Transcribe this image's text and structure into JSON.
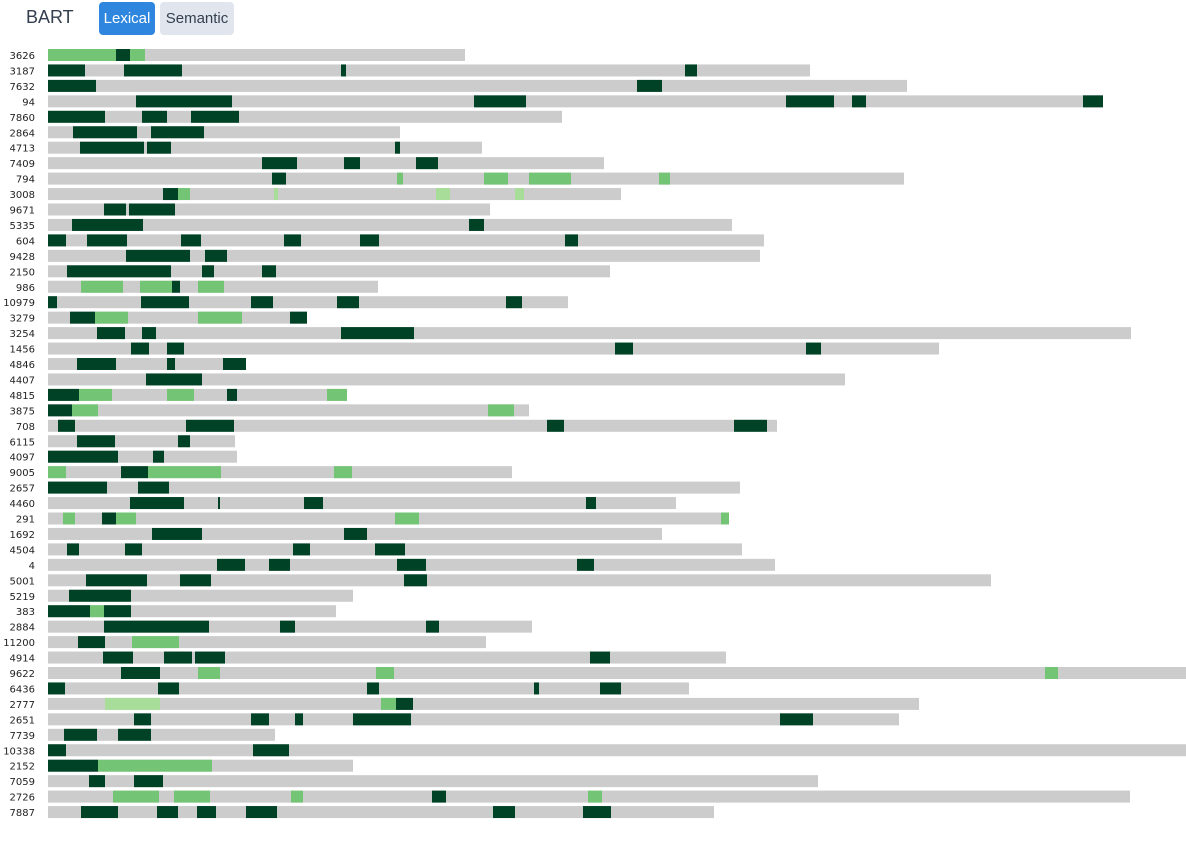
{
  "header": {
    "title": "BART",
    "tabs": [
      {
        "label": "Lexical",
        "active": true
      },
      {
        "label": "Semantic",
        "active": false
      }
    ]
  },
  "colors": {
    "background_bar": "#cccccc",
    "exact_match": "#004225",
    "partial_match": "#74c476",
    "weak_match": "#a8dd99",
    "active_tab": "#2e86de",
    "inactive_tab": "#e1e6ee"
  },
  "chart_data": {
    "type": "bar",
    "orientation": "horizontal",
    "x_axis_visible": false,
    "grid": false,
    "rows": [
      {
        "id": "3626",
        "length": 417,
        "segments": [
          [
            0,
            68,
            "partial"
          ],
          [
            68,
            82,
            "exact"
          ],
          [
            82,
            97,
            "partial"
          ]
        ]
      },
      {
        "id": "3187",
        "length": 762,
        "segments": [
          [
            0,
            37,
            "exact"
          ],
          [
            76,
            134,
            "exact"
          ],
          [
            293,
            298,
            "exact"
          ],
          [
            637,
            649,
            "exact"
          ]
        ]
      },
      {
        "id": "7632",
        "length": 859,
        "segments": [
          [
            0,
            48,
            "exact"
          ],
          [
            589,
            614,
            "exact"
          ]
        ]
      },
      {
        "id": "94",
        "length": 1055,
        "segments": [
          [
            88,
            184,
            "exact"
          ],
          [
            426,
            478,
            "exact"
          ],
          [
            738,
            786,
            "exact"
          ],
          [
            804,
            818,
            "exact"
          ],
          [
            1035,
            1055,
            "exact"
          ]
        ]
      },
      {
        "id": "7860",
        "length": 514,
        "segments": [
          [
            0,
            57,
            "exact"
          ],
          [
            94,
            119,
            "exact"
          ],
          [
            143,
            191,
            "exact"
          ]
        ]
      },
      {
        "id": "2864",
        "length": 352,
        "segments": [
          [
            25,
            89,
            "exact"
          ],
          [
            103,
            156,
            "exact"
          ]
        ]
      },
      {
        "id": "4713",
        "length": 434,
        "segments": [
          [
            32,
            96,
            "exact"
          ],
          [
            99,
            123,
            "exact"
          ],
          [
            347,
            352,
            "exact"
          ]
        ]
      },
      {
        "id": "7409",
        "length": 556,
        "segments": [
          [
            214,
            249,
            "exact"
          ],
          [
            296,
            312,
            "exact"
          ],
          [
            368,
            390,
            "exact"
          ]
        ]
      },
      {
        "id": "794",
        "length": 856,
        "segments": [
          [
            224,
            238,
            "exact"
          ],
          [
            349,
            355,
            "partial"
          ],
          [
            436,
            460,
            "partial"
          ],
          [
            481,
            523,
            "partial"
          ],
          [
            611,
            622,
            "partial"
          ]
        ]
      },
      {
        "id": "3008",
        "length": 573,
        "segments": [
          [
            115,
            130,
            "exact"
          ],
          [
            130,
            142,
            "partial"
          ],
          [
            226,
            230,
            "weak"
          ],
          [
            388,
            402,
            "weak"
          ],
          [
            467,
            476,
            "weak"
          ]
        ]
      },
      {
        "id": "9671",
        "length": 442,
        "segments": [
          [
            56,
            78,
            "exact"
          ],
          [
            81,
            127,
            "exact"
          ]
        ]
      },
      {
        "id": "5335",
        "length": 684,
        "segments": [
          [
            24,
            95,
            "exact"
          ],
          [
            421,
            436,
            "exact"
          ]
        ]
      },
      {
        "id": "604",
        "length": 716,
        "segments": [
          [
            0,
            18,
            "exact"
          ],
          [
            39,
            79,
            "exact"
          ],
          [
            133,
            153,
            "exact"
          ],
          [
            236,
            253,
            "exact"
          ],
          [
            312,
            331,
            "exact"
          ],
          [
            517,
            530,
            "exact"
          ]
        ]
      },
      {
        "id": "9428",
        "length": 712,
        "segments": [
          [
            78,
            142,
            "exact"
          ],
          [
            157,
            179,
            "exact"
          ]
        ]
      },
      {
        "id": "2150",
        "length": 562,
        "segments": [
          [
            19,
            123,
            "exact"
          ],
          [
            154,
            166,
            "exact"
          ],
          [
            214,
            228,
            "exact"
          ]
        ]
      },
      {
        "id": "986",
        "length": 330,
        "segments": [
          [
            33,
            75,
            "partial"
          ],
          [
            92,
            124,
            "partial"
          ],
          [
            124,
            132,
            "exact"
          ],
          [
            150,
            176,
            "partial"
          ]
        ]
      },
      {
        "id": "10979",
        "length": 520,
        "segments": [
          [
            0,
            9,
            "exact"
          ],
          [
            93,
            141,
            "exact"
          ],
          [
            203,
            225,
            "exact"
          ],
          [
            289,
            311,
            "exact"
          ],
          [
            458,
            474,
            "exact"
          ]
        ]
      },
      {
        "id": "3279",
        "length": 259,
        "segments": [
          [
            22,
            47,
            "exact"
          ],
          [
            47,
            80,
            "partial"
          ],
          [
            150,
            194,
            "partial"
          ],
          [
            242,
            259,
            "exact"
          ]
        ]
      },
      {
        "id": "3254",
        "length": 1083,
        "segments": [
          [
            49,
            77,
            "exact"
          ],
          [
            94,
            108,
            "exact"
          ],
          [
            293,
            366,
            "exact"
          ]
        ]
      },
      {
        "id": "1456",
        "length": 891,
        "segments": [
          [
            83,
            101,
            "exact"
          ],
          [
            119,
            136,
            "exact"
          ],
          [
            567,
            585,
            "exact"
          ],
          [
            758,
            773,
            "exact"
          ]
        ]
      },
      {
        "id": "4846",
        "length": 198,
        "segments": [
          [
            29,
            68,
            "exact"
          ],
          [
            119,
            127,
            "exact"
          ],
          [
            175,
            198,
            "exact"
          ]
        ]
      },
      {
        "id": "4407",
        "length": 797,
        "segments": [
          [
            98,
            154,
            "exact"
          ]
        ]
      },
      {
        "id": "4815",
        "length": 299,
        "segments": [
          [
            0,
            31,
            "exact"
          ],
          [
            31,
            64,
            "partial"
          ],
          [
            119,
            146,
            "partial"
          ],
          [
            179,
            189,
            "exact"
          ],
          [
            279,
            299,
            "partial"
          ]
        ]
      },
      {
        "id": "3875",
        "length": 481,
        "segments": [
          [
            0,
            24,
            "exact"
          ],
          [
            24,
            50,
            "partial"
          ],
          [
            440,
            466,
            "partial"
          ]
        ]
      },
      {
        "id": "708",
        "length": 729,
        "segments": [
          [
            10,
            27,
            "exact"
          ],
          [
            138,
            186,
            "exact"
          ],
          [
            499,
            516,
            "exact"
          ],
          [
            686,
            719,
            "exact"
          ]
        ]
      },
      {
        "id": "6115",
        "length": 187,
        "segments": [
          [
            29,
            67,
            "exact"
          ],
          [
            130,
            142,
            "exact"
          ]
        ]
      },
      {
        "id": "4097",
        "length": 189,
        "segments": [
          [
            0,
            70,
            "exact"
          ],
          [
            105,
            116,
            "exact"
          ]
        ]
      },
      {
        "id": "9005",
        "length": 464,
        "segments": [
          [
            0,
            18,
            "partial"
          ],
          [
            73,
            100,
            "exact"
          ],
          [
            100,
            173,
            "partial"
          ],
          [
            286,
            304,
            "partial"
          ]
        ]
      },
      {
        "id": "2657",
        "length": 692,
        "segments": [
          [
            0,
            59,
            "exact"
          ],
          [
            90,
            121,
            "exact"
          ]
        ]
      },
      {
        "id": "4460",
        "length": 628,
        "segments": [
          [
            82,
            136,
            "exact"
          ],
          [
            170,
            172,
            "exact"
          ],
          [
            256,
            275,
            "exact"
          ],
          [
            538,
            548,
            "exact"
          ]
        ]
      },
      {
        "id": "291",
        "length": 681,
        "segments": [
          [
            15,
            27,
            "partial"
          ],
          [
            54,
            68,
            "exact"
          ],
          [
            68,
            88,
            "partial"
          ],
          [
            347,
            371,
            "partial"
          ],
          [
            673,
            681,
            "partial"
          ]
        ]
      },
      {
        "id": "1692",
        "length": 614,
        "segments": [
          [
            104,
            154,
            "exact"
          ],
          [
            296,
            319,
            "exact"
          ]
        ]
      },
      {
        "id": "4504",
        "length": 694,
        "segments": [
          [
            19,
            31,
            "exact"
          ],
          [
            77,
            94,
            "exact"
          ],
          [
            245,
            262,
            "exact"
          ],
          [
            327,
            357,
            "exact"
          ]
        ]
      },
      {
        "id": "4",
        "length": 727,
        "segments": [
          [
            169,
            197,
            "exact"
          ],
          [
            221,
            242,
            "exact"
          ],
          [
            349,
            378,
            "exact"
          ],
          [
            529,
            546,
            "exact"
          ]
        ]
      },
      {
        "id": "5001",
        "length": 943,
        "segments": [
          [
            38,
            99,
            "exact"
          ],
          [
            132,
            163,
            "exact"
          ],
          [
            356,
            379,
            "exact"
          ]
        ]
      },
      {
        "id": "5219",
        "length": 305,
        "segments": [
          [
            21,
            83,
            "exact"
          ]
        ]
      },
      {
        "id": "383",
        "length": 288,
        "segments": [
          [
            0,
            42,
            "exact"
          ],
          [
            42,
            56,
            "partial"
          ],
          [
            56,
            83,
            "exact"
          ]
        ]
      },
      {
        "id": "2884",
        "length": 484,
        "segments": [
          [
            56,
            161,
            "exact"
          ],
          [
            232,
            247,
            "exact"
          ],
          [
            378,
            391,
            "exact"
          ]
        ]
      },
      {
        "id": "11200",
        "length": 438,
        "segments": [
          [
            30,
            57,
            "exact"
          ],
          [
            84,
            131,
            "partial"
          ]
        ]
      },
      {
        "id": "4914",
        "length": 678,
        "segments": [
          [
            55,
            85,
            "exact"
          ],
          [
            116,
            144,
            "exact"
          ],
          [
            147,
            177,
            "exact"
          ],
          [
            542,
            562,
            "exact"
          ]
        ]
      },
      {
        "id": "9622",
        "length": 1138,
        "segments": [
          [
            73,
            112,
            "exact"
          ],
          [
            150,
            172,
            "partial"
          ],
          [
            328,
            346,
            "partial"
          ],
          [
            997,
            1010,
            "partial"
          ]
        ]
      },
      {
        "id": "6436",
        "length": 641,
        "segments": [
          [
            0,
            17,
            "exact"
          ],
          [
            110,
            131,
            "exact"
          ],
          [
            319,
            331,
            "exact"
          ],
          [
            486,
            491,
            "exact"
          ],
          [
            552,
            573,
            "exact"
          ]
        ]
      },
      {
        "id": "2777",
        "length": 871,
        "segments": [
          [
            57,
            112,
            "weak"
          ],
          [
            333,
            348,
            "partial"
          ],
          [
            348,
            365,
            "exact"
          ]
        ]
      },
      {
        "id": "2651",
        "length": 851,
        "segments": [
          [
            86,
            103,
            "exact"
          ],
          [
            203,
            221,
            "exact"
          ],
          [
            247,
            255,
            "exact"
          ],
          [
            305,
            363,
            "exact"
          ],
          [
            732,
            765,
            "exact"
          ]
        ]
      },
      {
        "id": "7739",
        "length": 227,
        "segments": [
          [
            16,
            49,
            "exact"
          ],
          [
            70,
            103,
            "exact"
          ]
        ]
      },
      {
        "id": "10338",
        "length": 1138,
        "segments": [
          [
            0,
            18,
            "exact"
          ],
          [
            205,
            241,
            "exact"
          ]
        ]
      },
      {
        "id": "2152",
        "length": 305,
        "segments": [
          [
            0,
            50,
            "exact"
          ],
          [
            50,
            164,
            "partial"
          ]
        ]
      },
      {
        "id": "7059",
        "length": 770,
        "segments": [
          [
            41,
            57,
            "exact"
          ],
          [
            86,
            115,
            "exact"
          ]
        ]
      },
      {
        "id": "2726",
        "length": 1082,
        "segments": [
          [
            65,
            111,
            "partial"
          ],
          [
            126,
            162,
            "partial"
          ],
          [
            243,
            255,
            "partial"
          ],
          [
            384,
            398,
            "exact"
          ],
          [
            540,
            554,
            "partial"
          ]
        ]
      },
      {
        "id": "7887",
        "length": 666,
        "segments": [
          [
            33,
            70,
            "exact"
          ],
          [
            109,
            130,
            "exact"
          ],
          [
            149,
            168,
            "exact"
          ],
          [
            198,
            229,
            "exact"
          ],
          [
            445,
            467,
            "exact"
          ],
          [
            535,
            563,
            "exact"
          ]
        ]
      }
    ]
  }
}
